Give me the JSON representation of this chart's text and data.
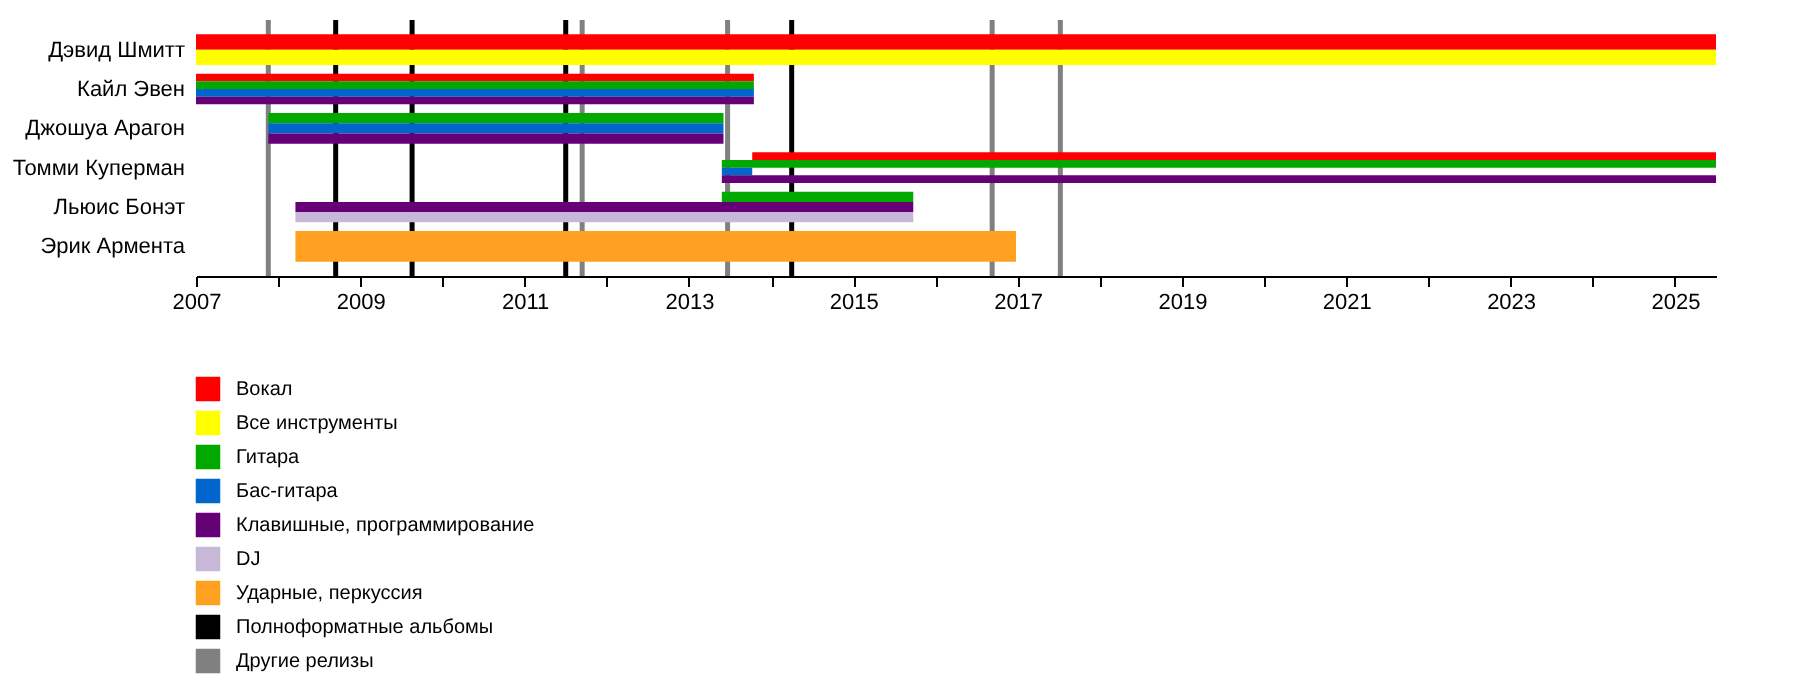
{
  "chart_data": {
    "type": "bar",
    "orientation": "horizontal",
    "legend": "bottom",
    "grid": false,
    "categories": [
      "Дэвид Шмитт",
      "Кайл Эвен",
      "Джошуа Арагон",
      "Томми Куперман",
      "Льюис Бонэт",
      "Эрик Армента"
    ],
    "xlim": [
      2007,
      2025.5
    ],
    "xticks": [
      2007,
      {
        "value": 2008,
        "label": null
      },
      2009,
      {
        "value": 2010,
        "label": null
      },
      2011,
      {
        "value": 2012,
        "label": null
      },
      2013,
      {
        "value": 2014,
        "label": null
      },
      2015,
      {
        "value": 2016,
        "label": null
      },
      2017,
      {
        "value": 2018,
        "label": null
      },
      2019,
      {
        "value": 2020,
        "label": null
      },
      2021,
      {
        "value": 2022,
        "label": null
      },
      2023,
      {
        "value": 2024,
        "label": null
      },
      2025
    ],
    "series": [
      {
        "name": "Вокал",
        "color": "#ff0000",
        "base": [
          2007,
          2007,
          null,
          2013.77,
          null,
          null
        ],
        "values": [
          18.5,
          6.79,
          null,
          11.73,
          null,
          null
        ]
      },
      {
        "name": "Все инструменты",
        "color": "#ffff00",
        "base": [
          2007,
          null,
          null,
          null,
          null,
          null
        ],
        "values": [
          18.5,
          null,
          null,
          null,
          null,
          null
        ]
      },
      {
        "name": "Гитара",
        "color": "#00a800",
        "base": [
          null,
          2007,
          2007.88,
          2013.4,
          2013.4,
          null
        ],
        "values": [
          null,
          6.79,
          5.54,
          12.1,
          2.33,
          null
        ]
      },
      {
        "name": "Бас-гитара",
        "color": "#0066cc",
        "base": [
          null,
          2007,
          2007.88,
          2013.4,
          null,
          null
        ],
        "values": [
          null,
          6.79,
          5.54,
          0.37,
          null,
          null
        ]
      },
      {
        "name": "Клавишные, программирование",
        "color": "#660077",
        "base": [
          null,
          2007,
          2007.88,
          2013.4,
          2008.21,
          null
        ],
        "values": [
          null,
          6.79,
          5.54,
          12.1,
          7.52,
          null
        ]
      },
      {
        "name": "DJ",
        "color": "#c8b8d8",
        "base": [
          null,
          null,
          null,
          null,
          2008.21,
          null
        ],
        "values": [
          null,
          null,
          null,
          null,
          7.52,
          null
        ]
      },
      {
        "name": "Ударные, перкуссия",
        "color": "#ffa020",
        "base": [
          null,
          null,
          null,
          null,
          null,
          2008.21
        ],
        "values": [
          null,
          null,
          null,
          null,
          null,
          8.77
        ]
      }
    ],
    "ref_lines": [
      {
        "axis": "x",
        "value": 2008.7,
        "color": "#000000",
        "label": "Полноформатные альбомы"
      },
      {
        "axis": "x",
        "value": 2009.63,
        "color": "#000000"
      },
      {
        "axis": "x",
        "value": 2011.5,
        "color": "#000000"
      },
      {
        "axis": "x",
        "value": 2014.25,
        "color": "#000000"
      },
      {
        "axis": "x",
        "value": 2007.88,
        "color": "#808080",
        "label": "Другие релизы"
      },
      {
        "axis": "x",
        "value": 2011.7,
        "color": "#808080"
      },
      {
        "axis": "x",
        "value": 2013.47,
        "color": "#808080"
      },
      {
        "axis": "x",
        "value": 2016.69,
        "color": "#808080"
      },
      {
        "axis": "x",
        "value": 2017.52,
        "color": "#808080"
      }
    ]
  }
}
